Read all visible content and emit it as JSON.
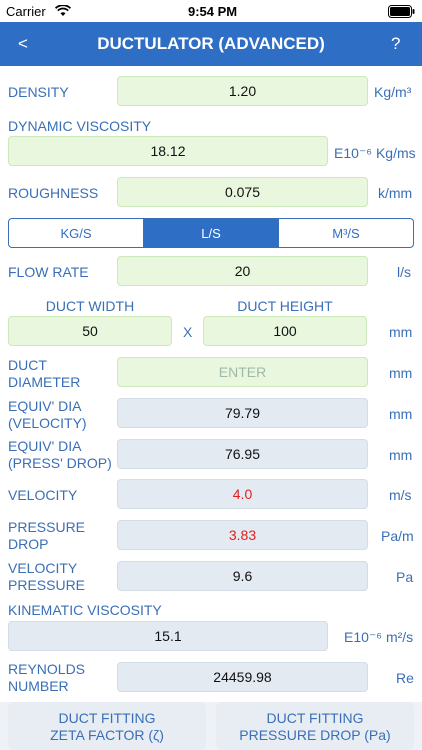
{
  "status": {
    "carrier": "Carrier",
    "time": "9:54 PM"
  },
  "nav": {
    "back": "<",
    "title": "DUCTULATOR (ADVANCED)",
    "help": "?"
  },
  "density": {
    "label": "DENSITY",
    "value": "1.20",
    "unit": "Kg/m³"
  },
  "viscosity": {
    "label": "DYNAMIC VISCOSITY",
    "value": "18.12",
    "unit": "E10⁻⁶ Kg/ms"
  },
  "roughness": {
    "label": "ROUGHNESS",
    "value": "0.075",
    "unit": "k/mm"
  },
  "units_toggle": {
    "opt1": "KG/S",
    "opt2": "L/S",
    "opt3": "M³/S",
    "selected": "L/S"
  },
  "flow": {
    "label": "FLOW RATE",
    "value": "20",
    "unit": "l/s"
  },
  "duct": {
    "width_label": "DUCT WIDTH",
    "height_label": "DUCT HEIGHT",
    "width": "50",
    "x": "X",
    "height": "100",
    "unit": "mm"
  },
  "diameter": {
    "label1": "DUCT",
    "label2": "DIAMETER",
    "placeholder": "ENTER",
    "unit": "mm"
  },
  "equiv_vel": {
    "label1": "EQUIV' DIA",
    "label2": "(VELOCITY)",
    "value": "79.79",
    "unit": "mm"
  },
  "equiv_press": {
    "label1": "EQUIV' DIA",
    "label2": "(PRESS' DROP)",
    "value": "76.95",
    "unit": "mm"
  },
  "velocity": {
    "label": "VELOCITY",
    "value": "4.0",
    "unit": "m/s"
  },
  "pressure_drop": {
    "label1": "PRESSURE",
    "label2": "DROP",
    "value": "3.83",
    "unit": "Pa/m"
  },
  "velocity_pressure": {
    "label1": "VELOCITY",
    "label2": "PRESSURE",
    "value": "9.6",
    "unit": "Pa"
  },
  "kinematic": {
    "label": "KINEMATIC VISCOSITY",
    "value": "15.1",
    "unit": "E10⁻⁶ m²/s"
  },
  "reynolds": {
    "label1": "REYNOLDS",
    "label2": "NUMBER",
    "value": "24459.98",
    "unit": "Re"
  },
  "fitting": {
    "zeta1": "DUCT FITTING",
    "zeta2": "ZETA FACTOR (ζ)",
    "drop1": "DUCT FITTING",
    "drop2": "PRESSURE DROP (Pa)"
  },
  "colors": {
    "nav": "#2e6ec5",
    "label": "#3a6fb7",
    "editable": "#e9f7df",
    "readonly": "#e4eaf2",
    "alert": "#e02020"
  }
}
